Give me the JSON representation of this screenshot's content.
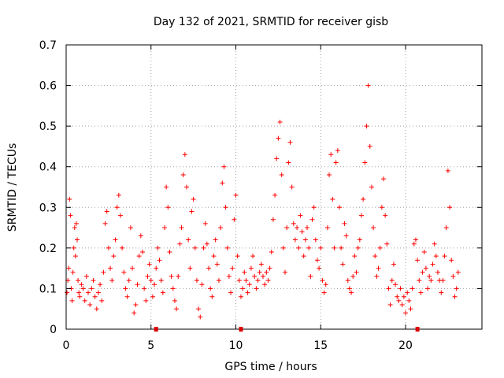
{
  "chart_data": {
    "type": "scatter",
    "title": "Day 132 of 2021, SRMTID for receiver gisb",
    "xlabel": "GPS time / hours",
    "ylabel": "SRMTID / TECUs",
    "xlim": [
      0,
      24.5
    ],
    "ylim": [
      0,
      0.7
    ],
    "xticks": [
      0,
      5,
      10,
      15,
      20
    ],
    "xtick_labels": [
      "0",
      "5",
      "10",
      "15",
      "20"
    ],
    "yticks": [
      0,
      0.1,
      0.2,
      0.3,
      0.4,
      0.5,
      0.6,
      0.7
    ],
    "ytick_labels": [
      "0",
      "0.1",
      "0.2",
      "0.3",
      "0.4",
      "0.5",
      "0.6",
      "0.7"
    ],
    "grid": true,
    "marker": "+",
    "color": "#ff0000",
    "axis_markers_x": [
      5.3,
      10.3,
      20.7
    ],
    "series": [
      {
        "name": "SRMTID",
        "points": [
          [
            0.05,
            0.09
          ],
          [
            0.1,
            0.12
          ],
          [
            0.15,
            0.15
          ],
          [
            0.2,
            0.32
          ],
          [
            0.25,
            0.28
          ],
          [
            0.3,
            0.1
          ],
          [
            0.35,
            0.07
          ],
          [
            0.4,
            0.14
          ],
          [
            0.45,
            0.2
          ],
          [
            0.5,
            0.25
          ],
          [
            0.55,
            0.18
          ],
          [
            0.6,
            0.26
          ],
          [
            0.65,
            0.22
          ],
          [
            0.7,
            0.12
          ],
          [
            0.75,
            0.09
          ],
          [
            0.8,
            0.08
          ],
          [
            0.9,
            0.11
          ],
          [
            1.0,
            0.1
          ],
          [
            1.1,
            0.07
          ],
          [
            1.2,
            0.13
          ],
          [
            1.3,
            0.09
          ],
          [
            1.4,
            0.06
          ],
          [
            1.5,
            0.1
          ],
          [
            1.6,
            0.12
          ],
          [
            1.7,
            0.08
          ],
          [
            1.8,
            0.05
          ],
          [
            1.9,
            0.09
          ],
          [
            2.0,
            0.11
          ],
          [
            2.1,
            0.07
          ],
          [
            2.2,
            0.14
          ],
          [
            2.3,
            0.26
          ],
          [
            2.4,
            0.29
          ],
          [
            2.5,
            0.2
          ],
          [
            2.6,
            0.15
          ],
          [
            2.7,
            0.12
          ],
          [
            2.8,
            0.18
          ],
          [
            2.9,
            0.22
          ],
          [
            3.0,
            0.3
          ],
          [
            3.1,
            0.33
          ],
          [
            3.2,
            0.28
          ],
          [
            3.3,
            0.2
          ],
          [
            3.4,
            0.14
          ],
          [
            3.5,
            0.1
          ],
          [
            3.6,
            0.08
          ],
          [
            3.7,
            0.12
          ],
          [
            3.8,
            0.25
          ],
          [
            3.9,
            0.15
          ],
          [
            4.0,
            0.04
          ],
          [
            4.1,
            0.06
          ],
          [
            4.2,
            0.11
          ],
          [
            4.3,
            0.18
          ],
          [
            4.4,
            0.23
          ],
          [
            4.5,
            0.19
          ],
          [
            4.6,
            0.1
          ],
          [
            4.7,
            0.07
          ],
          [
            4.8,
            0.13
          ],
          [
            4.9,
            0.16
          ],
          [
            5.0,
            0.12
          ],
          [
            5.1,
            0.08
          ],
          [
            5.2,
            0.11
          ],
          [
            5.3,
            0.15
          ],
          [
            5.4,
            0.2
          ],
          [
            5.5,
            0.17
          ],
          [
            5.6,
            0.12
          ],
          [
            5.7,
            0.09
          ],
          [
            5.8,
            0.25
          ],
          [
            5.9,
            0.35
          ],
          [
            6.0,
            0.3
          ],
          [
            6.1,
            0.19
          ],
          [
            6.2,
            0.13
          ],
          [
            6.3,
            0.1
          ],
          [
            6.4,
            0.07
          ],
          [
            6.5,
            0.05
          ],
          [
            6.6,
            0.13
          ],
          [
            6.7,
            0.21
          ],
          [
            6.8,
            0.25
          ],
          [
            6.9,
            0.38
          ],
          [
            7.0,
            0.43
          ],
          [
            7.1,
            0.35
          ],
          [
            7.2,
            0.22
          ],
          [
            7.3,
            0.15
          ],
          [
            7.4,
            0.29
          ],
          [
            7.5,
            0.32
          ],
          [
            7.6,
            0.2
          ],
          [
            7.7,
            0.12
          ],
          [
            7.8,
            0.05
          ],
          [
            7.9,
            0.03
          ],
          [
            8.0,
            0.11
          ],
          [
            8.1,
            0.2
          ],
          [
            8.2,
            0.26
          ],
          [
            8.3,
            0.21
          ],
          [
            8.4,
            0.15
          ],
          [
            8.5,
            0.1
          ],
          [
            8.6,
            0.08
          ],
          [
            8.7,
            0.18
          ],
          [
            8.8,
            0.22
          ],
          [
            8.9,
            0.16
          ],
          [
            9.0,
            0.12
          ],
          [
            9.1,
            0.25
          ],
          [
            9.2,
            0.36
          ],
          [
            9.3,
            0.4
          ],
          [
            9.4,
            0.3
          ],
          [
            9.5,
            0.2
          ],
          [
            9.6,
            0.13
          ],
          [
            9.7,
            0.09
          ],
          [
            9.8,
            0.15
          ],
          [
            9.9,
            0.27
          ],
          [
            10.0,
            0.33
          ],
          [
            10.1,
            0.18
          ],
          [
            10.2,
            0.12
          ],
          [
            10.3,
            0.08
          ],
          [
            10.4,
            0.1
          ],
          [
            10.5,
            0.14
          ],
          [
            10.6,
            0.12
          ],
          [
            10.7,
            0.09
          ],
          [
            10.8,
            0.11
          ],
          [
            10.9,
            0.15
          ],
          [
            11.0,
            0.18
          ],
          [
            11.1,
            0.13
          ],
          [
            11.2,
            0.1
          ],
          [
            11.3,
            0.12
          ],
          [
            11.4,
            0.14
          ],
          [
            11.5,
            0.16
          ],
          [
            11.6,
            0.13
          ],
          [
            11.7,
            0.11
          ],
          [
            11.8,
            0.14
          ],
          [
            11.9,
            0.12
          ],
          [
            12.0,
            0.15
          ],
          [
            12.1,
            0.19
          ],
          [
            12.2,
            0.27
          ],
          [
            12.3,
            0.33
          ],
          [
            12.4,
            0.42
          ],
          [
            12.5,
            0.47
          ],
          [
            12.6,
            0.51
          ],
          [
            12.7,
            0.38
          ],
          [
            12.8,
            0.2
          ],
          [
            12.9,
            0.14
          ],
          [
            13.0,
            0.25
          ],
          [
            13.1,
            0.41
          ],
          [
            13.2,
            0.46
          ],
          [
            13.3,
            0.35
          ],
          [
            13.4,
            0.26
          ],
          [
            13.5,
            0.22
          ],
          [
            13.6,
            0.25
          ],
          [
            13.7,
            0.2
          ],
          [
            13.8,
            0.28
          ],
          [
            13.9,
            0.24
          ],
          [
            14.0,
            0.18
          ],
          [
            14.1,
            0.22
          ],
          [
            14.2,
            0.25
          ],
          [
            14.3,
            0.2
          ],
          [
            14.4,
            0.13
          ],
          [
            14.5,
            0.27
          ],
          [
            14.6,
            0.3
          ],
          [
            14.7,
            0.22
          ],
          [
            14.8,
            0.17
          ],
          [
            14.9,
            0.15
          ],
          [
            15.0,
            0.2
          ],
          [
            15.1,
            0.12
          ],
          [
            15.2,
            0.09
          ],
          [
            15.3,
            0.11
          ],
          [
            15.4,
            0.25
          ],
          [
            15.5,
            0.38
          ],
          [
            15.6,
            0.43
          ],
          [
            15.7,
            0.32
          ],
          [
            15.8,
            0.2
          ],
          [
            15.9,
            0.41
          ],
          [
            16.0,
            0.44
          ],
          [
            16.1,
            0.3
          ],
          [
            16.2,
            0.2
          ],
          [
            16.3,
            0.16
          ],
          [
            16.4,
            0.26
          ],
          [
            16.5,
            0.23
          ],
          [
            16.6,
            0.12
          ],
          [
            16.7,
            0.1
          ],
          [
            16.8,
            0.09
          ],
          [
            16.9,
            0.13
          ],
          [
            17.0,
            0.18
          ],
          [
            17.1,
            0.14
          ],
          [
            17.2,
            0.2
          ],
          [
            17.3,
            0.22
          ],
          [
            17.4,
            0.28
          ],
          [
            17.5,
            0.32
          ],
          [
            17.6,
            0.41
          ],
          [
            17.7,
            0.5
          ],
          [
            17.8,
            0.6
          ],
          [
            17.9,
            0.45
          ],
          [
            18.0,
            0.35
          ],
          [
            18.1,
            0.25
          ],
          [
            18.2,
            0.18
          ],
          [
            18.3,
            0.13
          ],
          [
            18.4,
            0.15
          ],
          [
            18.5,
            0.2
          ],
          [
            18.6,
            0.3
          ],
          [
            18.7,
            0.37
          ],
          [
            18.8,
            0.28
          ],
          [
            18.9,
            0.21
          ],
          [
            19.0,
            0.1
          ],
          [
            19.1,
            0.06
          ],
          [
            19.2,
            0.12
          ],
          [
            19.3,
            0.16
          ],
          [
            19.4,
            0.11
          ],
          [
            19.5,
            0.08
          ],
          [
            19.6,
            0.07
          ],
          [
            19.7,
            0.1
          ],
          [
            19.8,
            0.06
          ],
          [
            19.9,
            0.08
          ],
          [
            20.0,
            0.04
          ],
          [
            20.1,
            0.09
          ],
          [
            20.2,
            0.07
          ],
          [
            20.3,
            0.05
          ],
          [
            20.4,
            0.1
          ],
          [
            20.5,
            0.21
          ],
          [
            20.6,
            0.22
          ],
          [
            20.7,
            0.17
          ],
          [
            20.8,
            0.12
          ],
          [
            20.9,
            0.09
          ],
          [
            21.0,
            0.14
          ],
          [
            21.1,
            0.19
          ],
          [
            21.2,
            0.15
          ],
          [
            21.3,
            0.1
          ],
          [
            21.4,
            0.13
          ],
          [
            21.5,
            0.12
          ],
          [
            21.6,
            0.16
          ],
          [
            21.7,
            0.21
          ],
          [
            21.8,
            0.18
          ],
          [
            21.9,
            0.14
          ],
          [
            22.0,
            0.12
          ],
          [
            22.1,
            0.09
          ],
          [
            22.2,
            0.12
          ],
          [
            22.3,
            0.18
          ],
          [
            22.4,
            0.25
          ],
          [
            22.5,
            0.39
          ],
          [
            22.6,
            0.3
          ],
          [
            22.7,
            0.17
          ],
          [
            22.8,
            0.13
          ],
          [
            22.9,
            0.08
          ],
          [
            23.0,
            0.1
          ],
          [
            23.1,
            0.14
          ]
        ]
      }
    ]
  }
}
